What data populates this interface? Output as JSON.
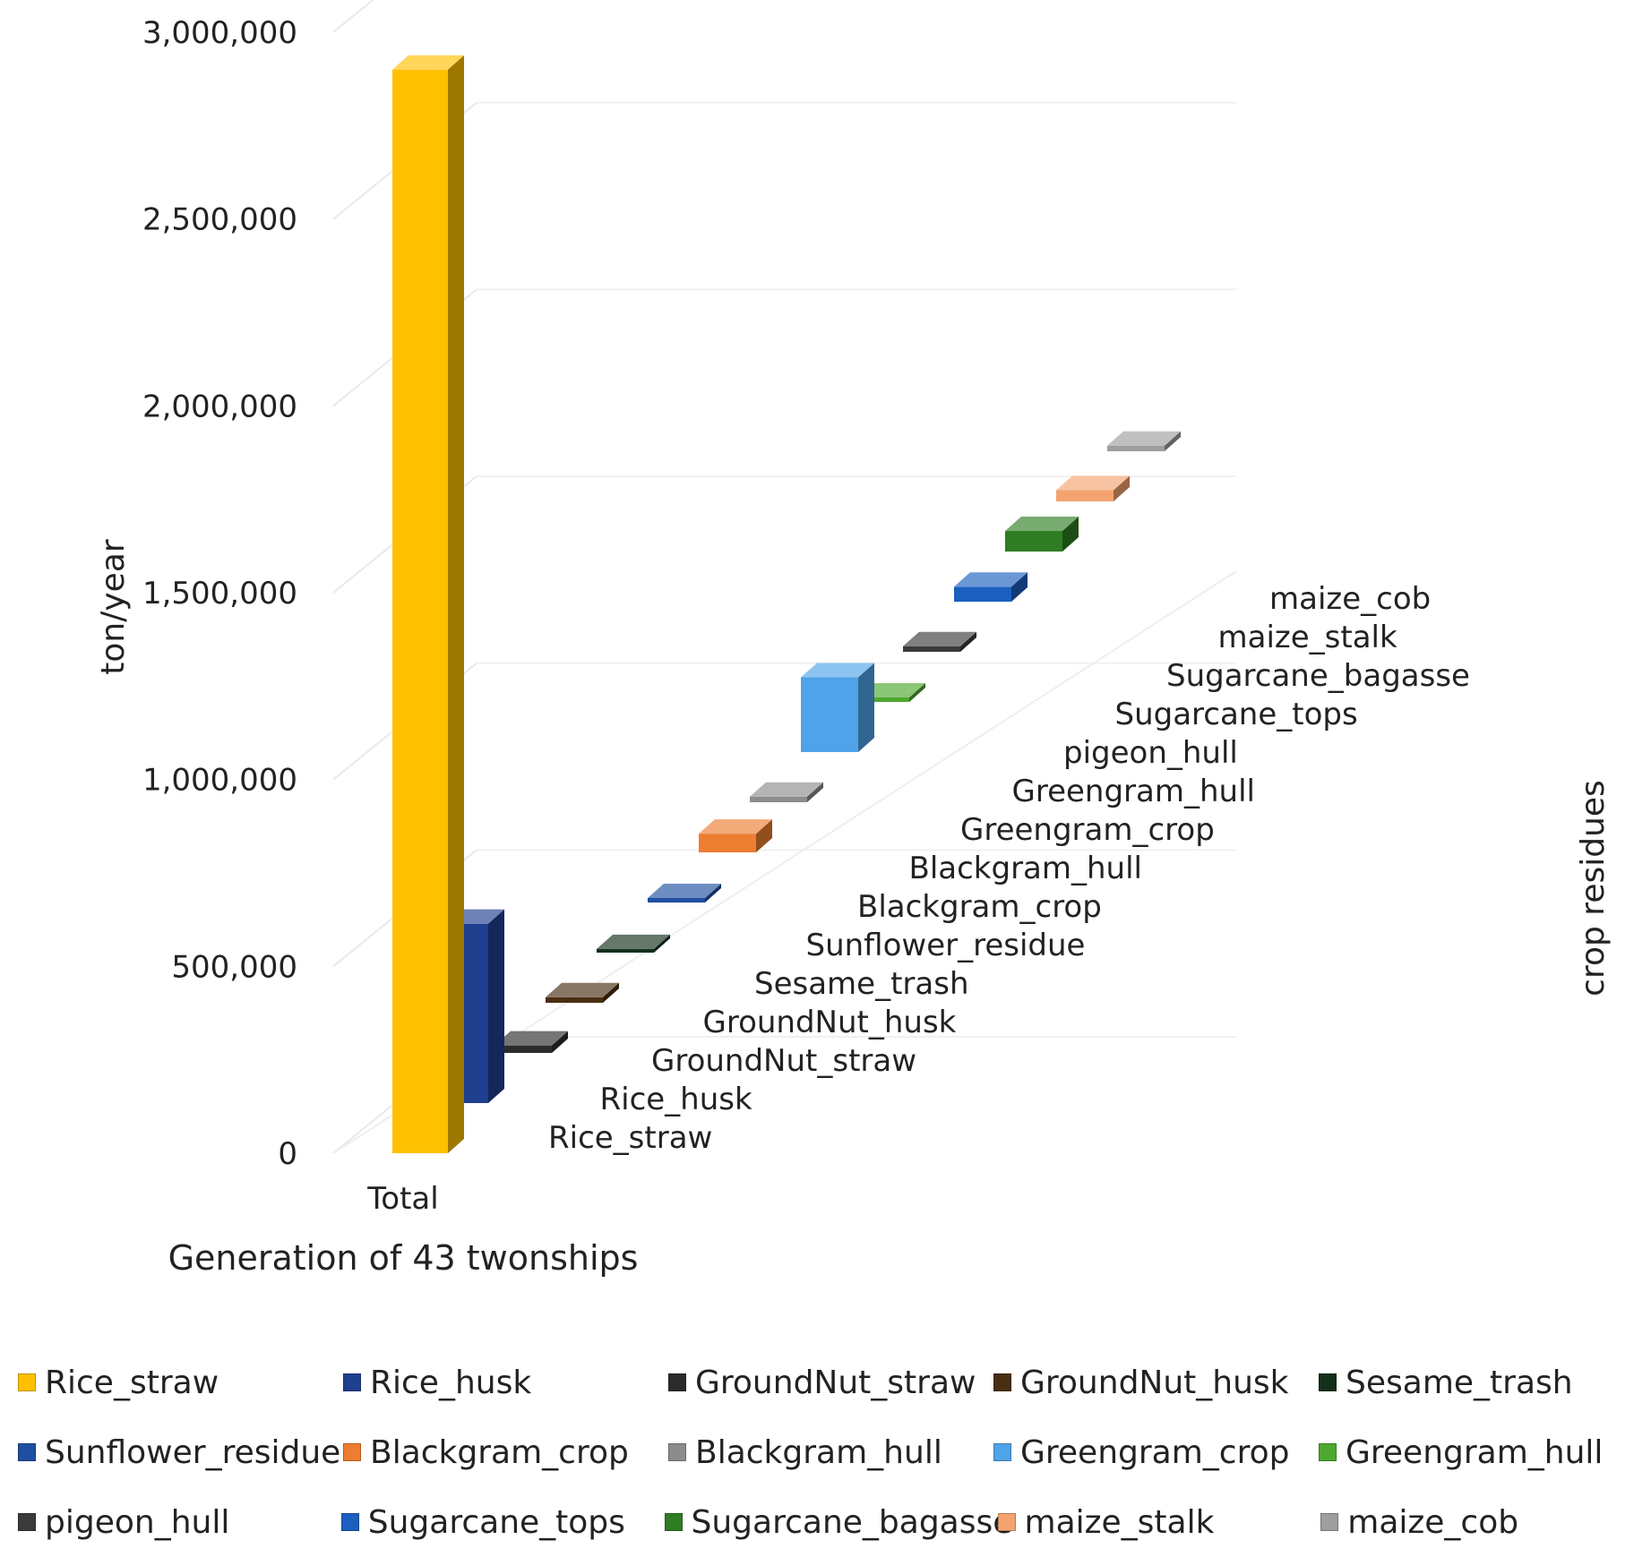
{
  "chart_data": {
    "type": "bar",
    "subtype": "3d-column",
    "title": "",
    "xlabel": "Generation of 43 twonships",
    "ylabel": "ton/year",
    "zlabel": "crop residues",
    "categories": [
      "Total"
    ],
    "ylim": [
      0,
      3000000
    ],
    "yticks": [
      0,
      500000,
      1000000,
      1500000,
      2000000,
      2500000,
      3000000
    ],
    "ytick_labels": [
      "0",
      "500,000",
      "1,000,000",
      "1,500,000",
      "2,000,000",
      "2,500,000",
      "3,000,000"
    ],
    "grid": true,
    "legend_position": "bottom",
    "series": [
      {
        "name": "Rice_straw",
        "values": [
          2900000
        ],
        "color": "#FFC000"
      },
      {
        "name": "Rice_husk",
        "values": [
          480000
        ],
        "color": "#1F3F8F"
      },
      {
        "name": "GroundNut_straw",
        "values": [
          20000
        ],
        "color": "#2B2B2B"
      },
      {
        "name": "GroundNut_husk",
        "values": [
          15000
        ],
        "color": "#4A2E12"
      },
      {
        "name": "Sesame_trash",
        "values": [
          10000
        ],
        "color": "#12301A"
      },
      {
        "name": "Sunflower_residue",
        "values": [
          12000
        ],
        "color": "#1E4FA0"
      },
      {
        "name": "Blackgram_crop",
        "values": [
          50000
        ],
        "color": "#ED7D31"
      },
      {
        "name": "Blackgram_hull",
        "values": [
          15000
        ],
        "color": "#8C8C8C"
      },
      {
        "name": "Greengram_crop",
        "values": [
          200000
        ],
        "color": "#4FA3E8"
      },
      {
        "name": "Greengram_hull",
        "values": [
          12000
        ],
        "color": "#4EA72E"
      },
      {
        "name": "pigeon_hull",
        "values": [
          15000
        ],
        "color": "#3A3A3A"
      },
      {
        "name": "Sugarcane_tops",
        "values": [
          40000
        ],
        "color": "#1B5FBF"
      },
      {
        "name": "Sugarcane_bagasse",
        "values": [
          55000
        ],
        "color": "#2E7D22"
      },
      {
        "name": "maize_stalk",
        "values": [
          30000
        ],
        "color": "#F4A370"
      },
      {
        "name": "maize_cob",
        "values": [
          15000
        ],
        "color": "#9E9E9E"
      }
    ]
  }
}
